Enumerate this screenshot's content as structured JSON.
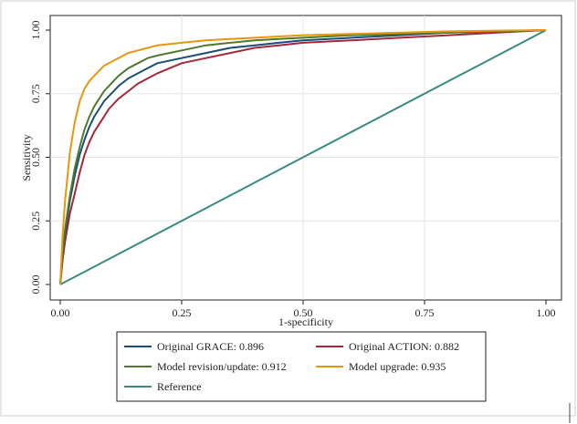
{
  "chart_data": {
    "type": "line",
    "title": "",
    "xlabel": "1-specificity",
    "ylabel": "Sensitivity",
    "xlim": [
      0,
      1
    ],
    "ylim": [
      0,
      1
    ],
    "x_ticks": [
      "0.00",
      "0.25",
      "0.50",
      "0.75",
      "1.00"
    ],
    "y_ticks": [
      "0.00",
      "0.25",
      "0.50",
      "0.75",
      "1.00"
    ],
    "grid": true,
    "legend_position": "bottom",
    "series": [
      {
        "name": "Original GRACE: 0.896",
        "color": "#1a4e7a",
        "x": [
          0,
          0.005,
          0.01,
          0.02,
          0.03,
          0.04,
          0.05,
          0.06,
          0.07,
          0.08,
          0.09,
          0.1,
          0.12,
          0.14,
          0.16,
          0.18,
          0.2,
          0.25,
          0.3,
          0.35,
          0.4,
          0.45,
          0.5,
          0.6,
          0.7,
          0.8,
          0.9,
          1.0
        ],
        "y": [
          0,
          0.12,
          0.2,
          0.33,
          0.43,
          0.51,
          0.57,
          0.62,
          0.66,
          0.69,
          0.72,
          0.74,
          0.78,
          0.81,
          0.83,
          0.85,
          0.87,
          0.89,
          0.91,
          0.93,
          0.94,
          0.95,
          0.96,
          0.97,
          0.98,
          0.99,
          0.995,
          1.0
        ]
      },
      {
        "name": "Original ACTION: 0.882",
        "color": "#a3283a",
        "x": [
          0,
          0.005,
          0.01,
          0.02,
          0.03,
          0.04,
          0.05,
          0.06,
          0.07,
          0.08,
          0.09,
          0.1,
          0.12,
          0.14,
          0.16,
          0.18,
          0.2,
          0.25,
          0.3,
          0.35,
          0.4,
          0.45,
          0.5,
          0.6,
          0.7,
          0.8,
          0.9,
          1.0
        ],
        "y": [
          0,
          0.1,
          0.17,
          0.28,
          0.36,
          0.44,
          0.51,
          0.56,
          0.6,
          0.63,
          0.66,
          0.69,
          0.73,
          0.76,
          0.79,
          0.81,
          0.83,
          0.87,
          0.89,
          0.91,
          0.93,
          0.94,
          0.95,
          0.96,
          0.97,
          0.98,
          0.99,
          1.0
        ]
      },
      {
        "name": "Model revision/update: 0.912",
        "color": "#4e7a2e",
        "x": [
          0,
          0.005,
          0.01,
          0.02,
          0.03,
          0.04,
          0.05,
          0.06,
          0.07,
          0.08,
          0.09,
          0.1,
          0.12,
          0.14,
          0.16,
          0.18,
          0.2,
          0.25,
          0.3,
          0.35,
          0.4,
          0.45,
          0.5,
          0.6,
          0.7,
          0.8,
          0.9,
          1.0
        ],
        "y": [
          0,
          0.13,
          0.22,
          0.35,
          0.46,
          0.54,
          0.61,
          0.66,
          0.7,
          0.73,
          0.76,
          0.78,
          0.82,
          0.85,
          0.87,
          0.89,
          0.9,
          0.92,
          0.94,
          0.95,
          0.96,
          0.965,
          0.97,
          0.98,
          0.985,
          0.99,
          0.995,
          1.0
        ]
      },
      {
        "name": "Model upgrade: 0.935",
        "color": "#e8960e",
        "x": [
          0,
          0.005,
          0.01,
          0.02,
          0.03,
          0.04,
          0.05,
          0.06,
          0.07,
          0.08,
          0.09,
          0.1,
          0.12,
          0.14,
          0.16,
          0.18,
          0.2,
          0.25,
          0.3,
          0.35,
          0.4,
          0.45,
          0.5,
          0.6,
          0.7,
          0.8,
          0.9,
          1.0
        ],
        "y": [
          0,
          0.2,
          0.33,
          0.52,
          0.64,
          0.72,
          0.77,
          0.8,
          0.82,
          0.84,
          0.86,
          0.87,
          0.89,
          0.91,
          0.92,
          0.93,
          0.94,
          0.95,
          0.96,
          0.965,
          0.97,
          0.975,
          0.98,
          0.985,
          0.99,
          0.995,
          0.998,
          1.0
        ]
      },
      {
        "name": "Reference",
        "color": "#3a8a82",
        "x": [
          0,
          1
        ],
        "y": [
          0,
          1
        ]
      }
    ]
  }
}
